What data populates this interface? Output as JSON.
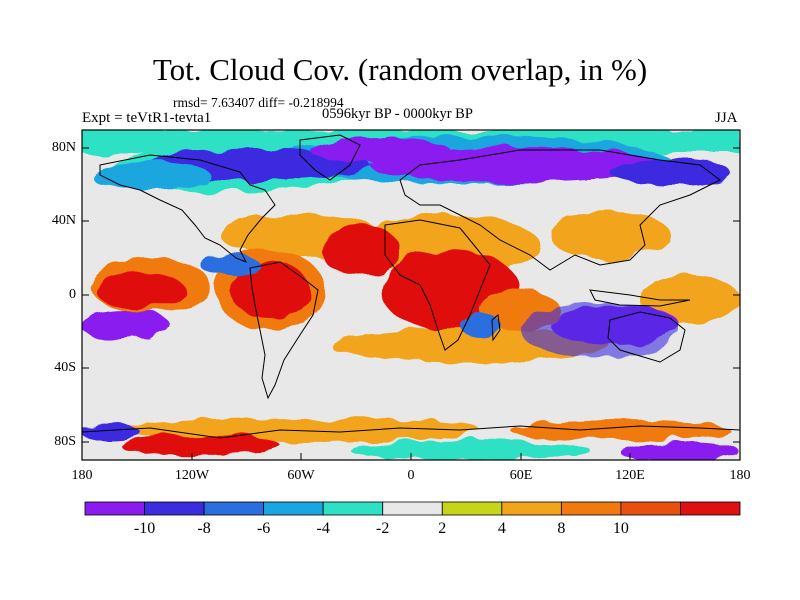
{
  "title": "Tot. Cloud Cov. (random overlap, in %)",
  "stats": "rmsd= 7.63407 diff= -0.218994",
  "experiment": "Expt = teVtR1-tevta1",
  "period": "0596kyr BP - 0000kyr BP",
  "season": "JJA",
  "lat_ticks": [
    "80N",
    "40N",
    "0",
    "40S",
    "80S"
  ],
  "lon_ticks": [
    "180",
    "120W",
    "60W",
    "0",
    "60E",
    "120E",
    "180"
  ],
  "colorbar": {
    "labels": [
      "-10",
      "-8",
      "-6",
      "-4",
      "-2",
      "2",
      "4",
      "8",
      "10"
    ],
    "colors": [
      "#8a1cf0",
      "#3c2ce0",
      "#2a6ee0",
      "#1aa6e0",
      "#2ee0c4",
      "#e8e8e8",
      "#c8d41a",
      "#f2a51a",
      "#f07a10",
      "#e85010",
      "#e01010"
    ]
  },
  "palette": {
    "strong_neg": "#8a1cf0",
    "neg": "#3c2ce0",
    "mid_neg": "#2a6ee0",
    "weak_neg": "#1aa6e0",
    "near_neg": "#2ee0c4",
    "neutral": "#e8e8e8",
    "near_pos": "#c8d41a",
    "weak_pos": "#f2a51a",
    "pos": "#f07a10",
    "strong_pos": "#e01010"
  }
}
